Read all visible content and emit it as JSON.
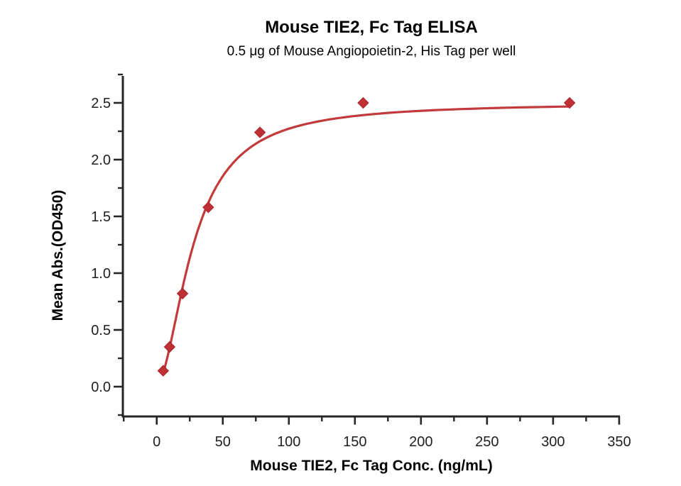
{
  "chart_data": {
    "type": "scatter",
    "title": "Mouse TIE2, Fc Tag ELISA",
    "subtitle": "0.5 μg of Mouse Angiopoietin-2, His Tag per well",
    "xlabel": "Mouse TIE2, Fc Tag Conc. (ng/mL)",
    "ylabel": "Mean Abs.(OD450)",
    "xlim": [
      -25,
      350
    ],
    "ylim": [
      -0.26,
      2.74
    ],
    "grid": false,
    "legend": "none",
    "x_major_ticks": [
      0,
      50,
      100,
      150,
      200,
      250,
      300,
      350
    ],
    "x_tick_labels": [
      "0",
      "50",
      "100",
      "150",
      "200",
      "250",
      "300",
      "350"
    ],
    "x_minor_ticks": [
      -25,
      25,
      75,
      125,
      175,
      225,
      275,
      325
    ],
    "y_major_ticks": [
      0,
      0.5,
      1,
      1.5,
      2,
      2.5
    ],
    "y_tick_labels": [
      "0.0",
      "0.5",
      "1.0",
      "1.5",
      "2.0",
      "2.5"
    ],
    "y_minor_ticks": [
      -0.25,
      0.25,
      0.75,
      1.25,
      1.75,
      2.25,
      2.75
    ],
    "series": [
      {
        "name": "Mouse TIE2, Fc Tag",
        "marker": "diamond",
        "points": [
          [
            4.88,
            0.14
          ],
          [
            9.77,
            0.35
          ],
          [
            19.53,
            0.82
          ],
          [
            39.06,
            1.58
          ],
          [
            78.13,
            2.24
          ],
          [
            156.25,
            2.5
          ],
          [
            312.5,
            2.5
          ]
        ]
      }
    ],
    "fit_curve": {
      "model": "4PL",
      "lower": 0.02,
      "upper": 2.5,
      "ec50": 28,
      "hill": 1.8,
      "x_start": 4.88,
      "x_end": 312.5
    },
    "colors": {
      "curve": "#c23a3c",
      "marker": "#bf3036",
      "marker_edge": "#a8262b",
      "axis": "#262626",
      "text": "#1f1f1f"
    }
  }
}
